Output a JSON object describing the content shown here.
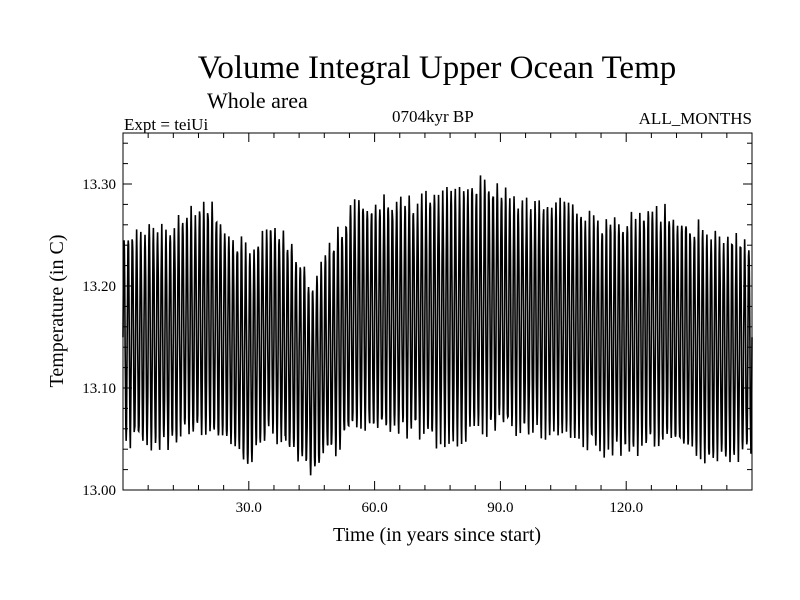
{
  "chart_data": {
    "type": "line",
    "title": "Volume Integral Upper Ocean Temp",
    "subtitle": "Whole area",
    "annotations": {
      "experiment": "Expt = teiUi",
      "period": "0704kyr BP",
      "months": "ALL_MONTHS"
    },
    "xlabel": "Time (in years since start)",
    "ylabel": "Temperature (in C)",
    "xlim": [
      0,
      150
    ],
    "ylim": [
      13.0,
      13.35
    ],
    "xticks": [
      30,
      60,
      90,
      120
    ],
    "xtick_labels": [
      "30.0",
      "60.0",
      "90.0",
      "120.0"
    ],
    "yticks": [
      13.0,
      13.1,
      13.2,
      13.3
    ],
    "ytick_labels": [
      "13.00",
      "13.10",
      "13.20",
      "13.30"
    ],
    "grid": false,
    "series": [
      {
        "color": "#000000",
        "sampling": "monthly",
        "annual_mean_envelope": {
          "x": [
            0,
            5,
            10,
            15,
            20,
            25,
            30,
            35,
            40,
            45,
            50,
            55,
            60,
            65,
            70,
            75,
            80,
            85,
            90,
            95,
            100,
            105,
            110,
            115,
            120,
            125,
            130,
            135,
            140,
            145,
            150
          ],
          "center": [
            13.15,
            13.15,
            13.15,
            13.16,
            13.17,
            13.15,
            13.13,
            13.16,
            13.14,
            13.11,
            13.14,
            13.17,
            13.17,
            13.17,
            13.17,
            13.17,
            13.17,
            13.18,
            13.18,
            13.17,
            13.17,
            13.17,
            13.16,
            13.15,
            13.15,
            13.16,
            13.16,
            13.15,
            13.14,
            13.14,
            13.14
          ]
        },
        "seasonal_amplitude": {
          "x": [
            0,
            5,
            10,
            15,
            20,
            25,
            30,
            35,
            40,
            45,
            50,
            55,
            60,
            65,
            70,
            75,
            80,
            85,
            90,
            95,
            100,
            105,
            110,
            115,
            120,
            125,
            130,
            135,
            140,
            145,
            150
          ],
          "half_range": [
            0.1,
            0.1,
            0.105,
            0.105,
            0.11,
            0.105,
            0.1,
            0.1,
            0.1,
            0.09,
            0.1,
            0.11,
            0.11,
            0.11,
            0.11,
            0.12,
            0.12,
            0.12,
            0.115,
            0.11,
            0.11,
            0.115,
            0.11,
            0.11,
            0.11,
            0.115,
            0.11,
            0.11,
            0.11,
            0.105,
            0.1
          ]
        },
        "range": {
          "min": 13.01,
          "max": 13.31,
          "x_at_max": 81,
          "x_at_min": 42
        }
      }
    ]
  }
}
